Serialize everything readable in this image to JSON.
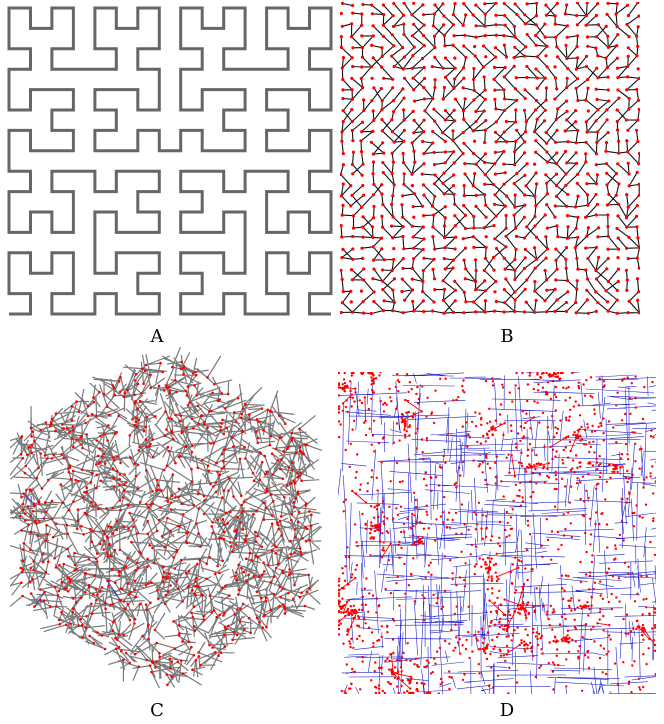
{
  "panels": [
    {
      "id": "A",
      "label": "A"
    },
    {
      "id": "B",
      "label": "B"
    },
    {
      "id": "C",
      "label": "C"
    },
    {
      "id": "D",
      "label": "D"
    }
  ],
  "colors": {
    "hilbert_stroke": "#666666",
    "edge_black": "#111111",
    "node_red": "#ff0000",
    "edge_gray": "#7a7a7a",
    "edge_blue": "#2222cc"
  }
}
